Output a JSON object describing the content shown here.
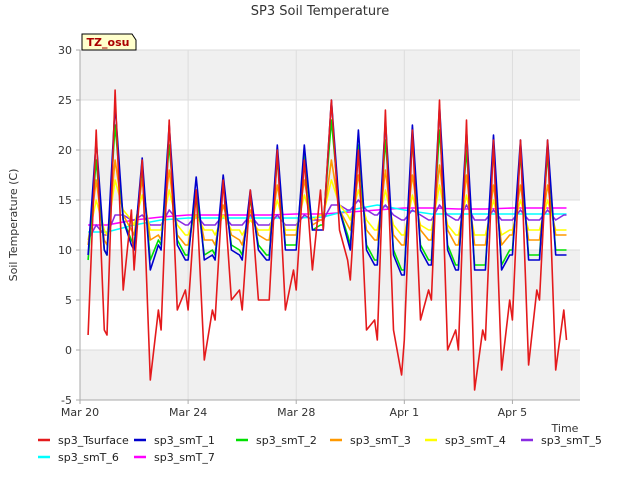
{
  "chart_data": {
    "type": "line",
    "title": "SP3 Soil Temperature",
    "xlabel": "Time",
    "ylabel": "Soil Temperature (C)",
    "badge": "TZ_osu",
    "ylim": [
      -5,
      30
    ],
    "xlim_days": [
      0,
      18.5
    ],
    "x_ticks": [
      {
        "day": 0,
        "label": "Mar 20"
      },
      {
        "day": 4,
        "label": "Mar 24"
      },
      {
        "day": 8,
        "label": "Mar 28"
      },
      {
        "day": 12,
        "label": "Apr 1"
      },
      {
        "day": 16,
        "label": "Apr 5"
      }
    ],
    "y_ticks": [
      -5,
      0,
      5,
      10,
      15,
      20,
      25,
      30
    ],
    "grid": true,
    "legend_position": "bottom",
    "series": [
      {
        "name": "sp3_Tsurface",
        "color": "#e41a1c",
        "x": [
          0.3,
          0.6,
          0.9,
          1.0,
          1.3,
          1.6,
          1.9,
          2.0,
          2.3,
          2.6,
          2.9,
          3.0,
          3.3,
          3.6,
          3.9,
          4.0,
          4.3,
          4.6,
          4.9,
          5.0,
          5.3,
          5.6,
          5.9,
          6.0,
          6.3,
          6.6,
          6.9,
          7.0,
          7.3,
          7.6,
          7.9,
          8.0,
          8.3,
          8.6,
          8.9,
          9.0,
          9.3,
          9.6,
          9.9,
          10.0,
          10.3,
          10.6,
          10.9,
          11.0,
          11.3,
          11.6,
          11.9,
          12.0,
          12.3,
          12.6,
          12.9,
          13.0,
          13.3,
          13.6,
          13.9,
          14.0,
          14.3,
          14.6,
          14.9,
          15.0,
          15.3,
          15.6,
          15.9,
          16.0,
          16.3,
          16.6,
          16.9,
          17.0,
          17.3,
          17.6,
          17.9,
          18.0
        ],
        "y": [
          1.5,
          22,
          2,
          1.5,
          26,
          6,
          14,
          8,
          19,
          -3,
          4,
          2,
          23,
          4,
          6,
          4,
          16,
          -1,
          4,
          3,
          17,
          5,
          6,
          4,
          16,
          5,
          5,
          5,
          20,
          4,
          8,
          6,
          19,
          8,
          16,
          12,
          25,
          12,
          9,
          7,
          20,
          2,
          3,
          1,
          24,
          2,
          -2.5,
          1,
          22,
          3,
          6,
          5,
          25,
          0,
          2,
          0,
          23,
          -4,
          2,
          1,
          21,
          -2,
          5,
          3,
          21,
          -1.5,
          6,
          5,
          21,
          -2,
          4,
          1
        ]
      },
      {
        "name": "sp3_smT_1",
        "color": "#0000cd",
        "x": [
          0.3,
          0.6,
          0.9,
          1.0,
          1.3,
          1.6,
          1.9,
          2.0,
          2.3,
          2.6,
          2.9,
          3.0,
          3.3,
          3.6,
          3.9,
          4.0,
          4.3,
          4.6,
          4.9,
          5.0,
          5.3,
          5.6,
          5.9,
          6.0,
          6.3,
          6.6,
          6.9,
          7.0,
          7.3,
          7.6,
          7.9,
          8.0,
          8.3,
          8.6,
          8.9,
          9.0,
          9.3,
          9.6,
          9.9,
          10.0,
          10.3,
          10.6,
          10.9,
          11.0,
          11.3,
          11.6,
          11.9,
          12.0,
          12.3,
          12.6,
          12.9,
          13.0,
          13.3,
          13.6,
          13.9,
          14.0,
          14.3,
          14.6,
          14.9,
          15.0,
          15.3,
          15.6,
          15.9,
          16.0,
          16.3,
          16.6,
          16.9,
          17.0,
          17.3,
          17.6,
          17.9,
          18.0
        ],
        "y": [
          9.5,
          21,
          10,
          9.5,
          24.5,
          13,
          10.5,
          10,
          19.2,
          8,
          10.5,
          10,
          22.5,
          10.5,
          9,
          9,
          17.3,
          9,
          9.5,
          9,
          17.5,
          10,
          9.5,
          9,
          16,
          10,
          9,
          9,
          20.5,
          10,
          10,
          10,
          20.5,
          12,
          12,
          12,
          25,
          14,
          11,
          10,
          22,
          10,
          8.5,
          8.5,
          23,
          9.5,
          7.5,
          7.5,
          22.5,
          10,
          8.5,
          8.5,
          24.5,
          10,
          8,
          8,
          22,
          8,
          8,
          8,
          21.5,
          8,
          9.5,
          9.5,
          21,
          9,
          9,
          9,
          21,
          9.5,
          9.5,
          9.5
        ]
      },
      {
        "name": "sp3_smT_2",
        "color": "#00e000",
        "x": [
          0.3,
          0.6,
          0.9,
          1.0,
          1.3,
          1.6,
          1.9,
          2.0,
          2.3,
          2.6,
          2.9,
          3.0,
          3.3,
          3.6,
          3.9,
          4.0,
          4.3,
          4.6,
          4.9,
          5.0,
          5.3,
          5.6,
          5.9,
          6.0,
          6.3,
          6.6,
          6.9,
          7.0,
          7.3,
          7.6,
          7.9,
          8.0,
          8.3,
          8.6,
          8.9,
          9.0,
          9.3,
          9.6,
          9.9,
          10.0,
          10.3,
          10.6,
          10.9,
          11.0,
          11.3,
          11.6,
          11.9,
          12.0,
          12.3,
          12.6,
          12.9,
          13.0,
          13.3,
          13.6,
          13.9,
          14.0,
          14.3,
          14.6,
          14.9,
          15.0,
          15.3,
          15.6,
          15.9,
          16.0,
          16.3,
          16.6,
          16.9,
          17.0,
          17.3,
          17.6,
          17.9,
          18.0
        ],
        "y": [
          9,
          19,
          10,
          9.5,
          22.5,
          13,
          11,
          10.5,
          18.2,
          9,
          11,
          10.5,
          20.5,
          11,
          9.5,
          9.5,
          16,
          9.5,
          10,
          9.5,
          16.5,
          10.5,
          10,
          9.5,
          15,
          10.5,
          9.5,
          9.5,
          19,
          10.5,
          10.5,
          10.5,
          19.5,
          12,
          12.5,
          12.5,
          23,
          14,
          11.5,
          10.5,
          20.5,
          10.5,
          9,
          9,
          21,
          10,
          8,
          8,
          21,
          10.5,
          9,
          9,
          22,
          10.5,
          8.5,
          8.5,
          20,
          8.5,
          8.5,
          8.5,
          20,
          8.5,
          10,
          10,
          19.5,
          9.5,
          9.5,
          9.5,
          19.5,
          10,
          10,
          10
        ]
      },
      {
        "name": "sp3_smT_3",
        "color": "#ff9900",
        "x": [
          0.3,
          0.6,
          0.9,
          1.0,
          1.3,
          1.6,
          1.9,
          2.0,
          2.3,
          2.6,
          2.9,
          3.0,
          3.3,
          3.6,
          3.9,
          4.0,
          4.3,
          4.6,
          4.9,
          5.0,
          5.3,
          5.6,
          5.9,
          6.0,
          6.3,
          6.6,
          6.9,
          7.0,
          7.3,
          7.6,
          7.9,
          8.0,
          8.3,
          8.6,
          8.9,
          9.0,
          9.3,
          9.6,
          9.9,
          10.0,
          10.3,
          10.6,
          10.9,
          11.0,
          11.3,
          11.6,
          11.9,
          12.0,
          12.3,
          12.6,
          12.9,
          13.0,
          13.3,
          13.6,
          13.9,
          14.0,
          14.3,
          14.6,
          14.9,
          15.0,
          15.3,
          15.6,
          15.9,
          16.0,
          16.3,
          16.6,
          16.9,
          17.0,
          17.3,
          17.6,
          17.9,
          18.0
        ],
        "y": [
          10.5,
          17,
          11,
          10.5,
          19,
          13.5,
          12,
          11.5,
          17,
          11,
          11.5,
          11,
          18,
          11.5,
          10.5,
          10.5,
          15,
          11,
          11,
          10.5,
          14.5,
          11.5,
          11,
          10.5,
          14,
          11.5,
          11,
          11,
          16.5,
          11.5,
          11.5,
          11.5,
          17,
          12.5,
          13,
          13,
          19,
          14,
          12.5,
          12,
          17.5,
          12,
          11,
          11,
          18,
          11.5,
          10.5,
          10.5,
          17.5,
          12,
          11,
          11,
          18.5,
          12,
          10.5,
          10.5,
          17.5,
          10.5,
          10.5,
          10.5,
          16.5,
          10.5,
          11.5,
          11.5,
          16.5,
          11,
          11,
          11,
          16.5,
          11.5,
          11.5,
          11.5
        ]
      },
      {
        "name": "sp3_smT_4",
        "color": "#ffff00",
        "x": [
          0.3,
          0.6,
          0.9,
          1.0,
          1.3,
          1.6,
          1.9,
          2.0,
          2.3,
          2.6,
          2.9,
          3.0,
          3.3,
          3.6,
          3.9,
          4.0,
          4.3,
          4.6,
          4.9,
          5.0,
          5.3,
          5.6,
          5.9,
          6.0,
          6.3,
          6.6,
          6.9,
          7.0,
          7.3,
          7.6,
          7.9,
          8.0,
          8.3,
          8.6,
          8.9,
          9.0,
          9.3,
          9.6,
          9.9,
          10.0,
          10.3,
          10.6,
          10.9,
          11.0,
          11.3,
          11.6,
          11.9,
          12.0,
          12.3,
          12.6,
          12.9,
          13.0,
          13.3,
          13.6,
          13.9,
          14.0,
          14.3,
          14.6,
          14.9,
          15.0,
          15.3,
          15.6,
          15.9,
          16.0,
          16.3,
          16.6,
          16.9,
          17.0,
          17.3,
          17.6,
          17.9,
          18.0
        ],
        "y": [
          11,
          15,
          12,
          11.5,
          17,
          14,
          13,
          12.5,
          15.5,
          12,
          12,
          12,
          16,
          12.5,
          11.5,
          11.5,
          13.5,
          12,
          12,
          11.5,
          13.5,
          12,
          12,
          11.5,
          13,
          12,
          12,
          12,
          15,
          12,
          12,
          12,
          15.5,
          13,
          13.5,
          13.5,
          17,
          14.5,
          13.5,
          13,
          16,
          13,
          12,
          12,
          16,
          12.5,
          11.5,
          11.5,
          15.5,
          12.5,
          12,
          12,
          16.5,
          12.5,
          11.5,
          11.5,
          15.5,
          11.5,
          11.5,
          11.5,
          15,
          11.5,
          12,
          12,
          15,
          12,
          12,
          12,
          15,
          12,
          12,
          12
        ]
      },
      {
        "name": "sp3_smT_5",
        "color": "#8a2be2",
        "x": [
          0.3,
          0.6,
          0.9,
          1.0,
          1.3,
          1.6,
          1.9,
          2.0,
          2.3,
          2.6,
          2.9,
          3.0,
          3.3,
          3.6,
          3.9,
          4.0,
          4.3,
          4.6,
          4.9,
          5.0,
          5.3,
          5.6,
          5.9,
          6.0,
          6.3,
          6.6,
          6.9,
          7.0,
          7.3,
          7.6,
          7.9,
          8.0,
          8.3,
          8.6,
          8.9,
          9.0,
          9.3,
          9.6,
          9.9,
          10.0,
          10.3,
          10.6,
          10.9,
          11.0,
          11.3,
          11.6,
          11.9,
          12.0,
          12.3,
          12.6,
          12.9,
          13.0,
          13.3,
          13.6,
          13.9,
          14.0,
          14.3,
          14.6,
          14.9,
          15.0,
          15.3,
          15.6,
          15.9,
          16.0,
          16.3,
          16.6,
          16.9,
          17.0,
          17.3,
          17.6,
          17.9,
          18.0
        ],
        "y": [
          11,
          12.5,
          11.5,
          11.5,
          13.5,
          13.5,
          13,
          13,
          13.5,
          12.5,
          12.5,
          12.5,
          14,
          13,
          12.5,
          12.5,
          13.5,
          12.5,
          12.5,
          12.5,
          13.5,
          12.5,
          12.5,
          12.5,
          13.5,
          12.5,
          12.5,
          12.5,
          13.5,
          12.5,
          12.5,
          12.5,
          13.5,
          13,
          13,
          13,
          14.5,
          14.5,
          14,
          14,
          15,
          14,
          13.5,
          13.5,
          14.5,
          13.5,
          13,
          13,
          14,
          13.5,
          13,
          13,
          14.5,
          13.5,
          13,
          13,
          14.5,
          13,
          13,
          13,
          14,
          13,
          13,
          13,
          14,
          13,
          13,
          13,
          14,
          13,
          13.5,
          13.5
        ]
      },
      {
        "name": "sp3_smT_6",
        "color": "#00ffff",
        "x": [
          0.3,
          1.0,
          2.0,
          3.0,
          4.0,
          5.0,
          6.0,
          7.0,
          8.0,
          9.0,
          10.0,
          11.0,
          12.0,
          13.0,
          14.0,
          15.0,
          16.0,
          17.0,
          18.0
        ],
        "y": [
          11.8,
          11.8,
          12.5,
          13,
          13.2,
          13.2,
          13.2,
          13.2,
          13.2,
          13.3,
          14,
          14.5,
          14,
          13.6,
          13.6,
          13.6,
          13.6,
          13.6,
          13.6
        ]
      },
      {
        "name": "sp3_smT_7",
        "color": "#ff00ff",
        "x": [
          0.3,
          1.0,
          2.0,
          3.0,
          4.0,
          5.0,
          6.0,
          7.0,
          8.0,
          9.0,
          10.0,
          11.0,
          12.0,
          13.0,
          14.0,
          15.0,
          16.0,
          17.0,
          18.0
        ],
        "y": [
          12.5,
          12.5,
          13,
          13.3,
          13.5,
          13.5,
          13.5,
          13.5,
          13.6,
          13.6,
          13.8,
          14,
          14.2,
          14.2,
          14.1,
          14.1,
          14.2,
          14.2,
          14.2
        ]
      }
    ]
  }
}
